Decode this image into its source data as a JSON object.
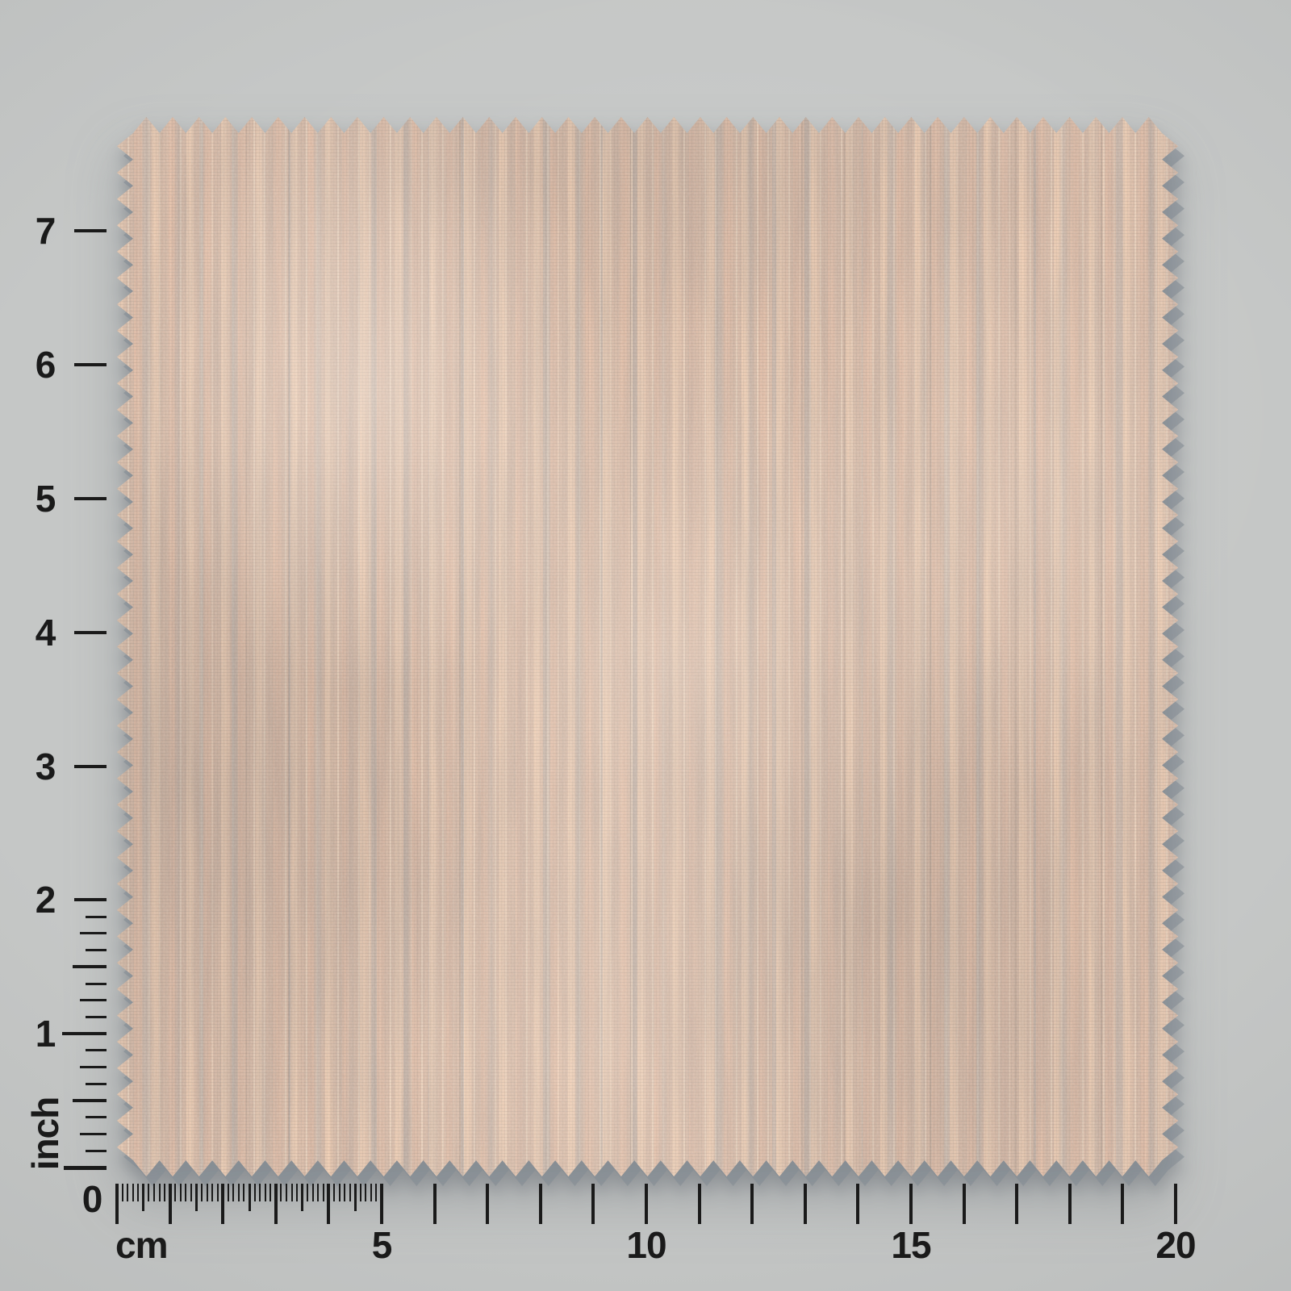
{
  "scene": {
    "background_color": "#c5c7c6",
    "tick_color": "#1a1a1a",
    "shadow_color": "#848c94"
  },
  "swatch": {
    "kind": "fabric-swatch",
    "edge_style": "pinked-zigzag",
    "size_cm": {
      "width": 20,
      "height": 20
    },
    "colors": {
      "base": "#dcbeaa",
      "stripe_peach": "#e6c3ac",
      "stripe_highlight": "#f0d8c1",
      "weave_gray": "#aeaaa7",
      "thread_dark": "#877f78"
    }
  },
  "rulers": {
    "origin_label": "0",
    "vertical": {
      "unit_label": "inch",
      "major_labels": [
        "1",
        "2",
        "3",
        "4",
        "5",
        "6",
        "7"
      ],
      "subdivided_range_inches": [
        0,
        2
      ],
      "subdivisions_per_inch": 8
    },
    "horizontal": {
      "unit_label": "cm",
      "major_labels": [
        "5",
        "10",
        "15",
        "20"
      ],
      "range_cm": [
        0,
        20
      ],
      "mm_ticks_range_cm": [
        0,
        5
      ]
    }
  }
}
